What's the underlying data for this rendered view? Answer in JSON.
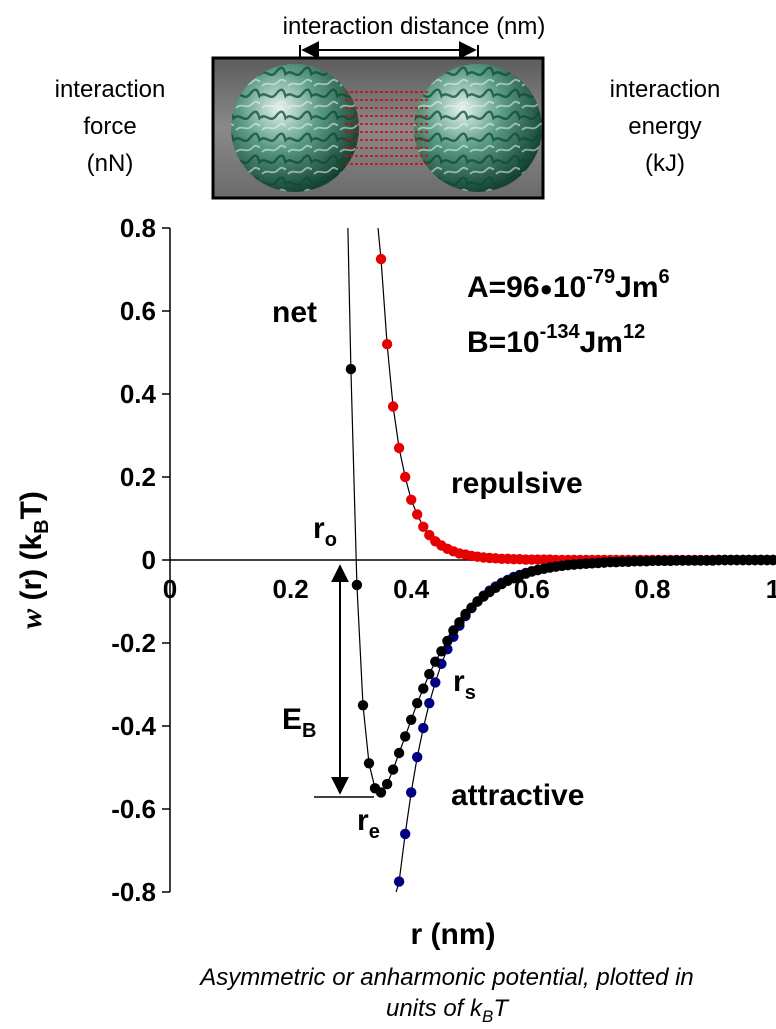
{
  "header": {
    "distance_label": "interaction distance (nm)",
    "force_lines": [
      "interaction",
      "force",
      "(nN)"
    ],
    "energy_lines": [
      "interaction",
      "energy",
      "(kJ)"
    ]
  },
  "chart_data": {
    "type": "scatter",
    "xlabel": "r (nm)",
    "ylabel": "w (r) (kBT)",
    "ylabel_parts": {
      "w": "w",
      "r": " (r) (k",
      "sub": "B",
      "end": "T)"
    },
    "xlim": [
      0,
      1
    ],
    "ylim": [
      -0.8,
      0.8
    ],
    "xticks": [
      "0",
      "0.2",
      "0.4",
      "0.6",
      "0.8",
      "1"
    ],
    "yticks": [
      "0.8",
      "0.6",
      "0.4",
      "0.2",
      "0",
      "-0.2",
      "-0.4",
      "-0.6",
      "-0.8"
    ],
    "xtick_values": [
      0,
      0.2,
      0.4,
      0.6,
      0.8,
      1
    ],
    "ytick_values": [
      0.8,
      0.6,
      0.4,
      0.2,
      0,
      -0.2,
      -0.4,
      -0.6,
      -0.8
    ],
    "params": {
      "A": {
        "lead": "A=96",
        "bullet": "●",
        "base": "10",
        "exp": "-79",
        "unit": "Jm",
        "unit_exp": "6"
      },
      "B": {
        "lead": "B=",
        "base": "10",
        "exp": "-134",
        "unit": "Jm",
        "unit_exp": "12"
      }
    },
    "annotations": {
      "net": "net",
      "repulsive": "repulsive",
      "attractive": "attractive",
      "r_o": {
        "base": "r",
        "sub": "o"
      },
      "r_e": {
        "base": "r",
        "sub": "e"
      },
      "r_s": {
        "base": "r",
        "sub": "s"
      },
      "E_B": {
        "base": "E",
        "sub": "B"
      }
    },
    "series": [
      {
        "color": "#e60000",
        "x": [
          0.35,
          0.36,
          0.37,
          0.38,
          0.39,
          0.4,
          0.41,
          0.42,
          0.43,
          0.44,
          0.45,
          0.46,
          0.47,
          0.48,
          0.49,
          0.5,
          0.51,
          0.52,
          0.53,
          0.54,
          0.55,
          0.56,
          0.57,
          0.58,
          0.59,
          0.6,
          0.61,
          0.62,
          0.63,
          0.64,
          0.65,
          0.66,
          0.67,
          0.68,
          0.69,
          0.7,
          0.71,
          0.72,
          0.73,
          0.74,
          0.75,
          0.76,
          0.77,
          0.78,
          0.79,
          0.8,
          0.81,
          0.82,
          0.83,
          0.84,
          0.85,
          0.86,
          0.87,
          0.88,
          0.89,
          0.9,
          0.91,
          0.92,
          0.93,
          0.94,
          0.95,
          0.96,
          0.97,
          0.98,
          0.99,
          1.0
        ],
        "y": [
          0.725,
          0.52,
          0.37,
          0.27,
          0.2,
          0.145,
          0.11,
          0.08,
          0.06,
          0.045,
          0.035,
          0.027,
          0.021,
          0.016,
          0.013,
          0.01,
          0.008,
          0.006,
          0.005,
          0.004,
          0.003,
          0.003,
          0.002,
          0.002,
          0.001,
          0.001,
          0.001,
          0.001,
          0.001,
          0,
          0,
          0,
          0,
          0,
          0,
          0,
          0,
          0,
          0,
          0,
          0,
          0,
          0,
          0,
          0,
          0,
          0,
          0,
          0,
          0,
          0,
          0,
          0,
          0,
          0,
          0,
          0,
          0,
          0,
          0,
          0,
          0,
          0,
          0,
          0,
          0
        ]
      },
      {
        "color": "#000080",
        "x": [
          0.38,
          0.39,
          0.4,
          0.41,
          0.42,
          0.43,
          0.44,
          0.45,
          0.46,
          0.47,
          0.48,
          0.49,
          0.5,
          0.51,
          0.52,
          0.53,
          0.54,
          0.55,
          0.56,
          0.57,
          0.58,
          0.59,
          0.6,
          0.61,
          0.62,
          0.63,
          0.64,
          0.65,
          0.66,
          0.67,
          0.68,
          0.69,
          0.7,
          0.71,
          0.72,
          0.73,
          0.74,
          0.75,
          0.76,
          0.77,
          0.78,
          0.79,
          0.8,
          0.81,
          0.82,
          0.83,
          0.84,
          0.85,
          0.86,
          0.87,
          0.88,
          0.89,
          0.9,
          0.91,
          0.92,
          0.93,
          0.94,
          0.95,
          0.96,
          0.97,
          0.98,
          0.99,
          1.0
        ],
        "y": [
          -0.775,
          -0.66,
          -0.56,
          -0.475,
          -0.405,
          -0.345,
          -0.295,
          -0.25,
          -0.215,
          -0.185,
          -0.158,
          -0.135,
          -0.116,
          -0.1,
          -0.086,
          -0.074,
          -0.064,
          -0.055,
          -0.048,
          -0.041,
          -0.036,
          -0.031,
          -0.027,
          -0.024,
          -0.021,
          -0.018,
          -0.016,
          -0.014,
          -0.012,
          -0.011,
          -0.01,
          -0.009,
          -0.008,
          -0.007,
          -0.006,
          -0.005,
          -0.005,
          -0.004,
          -0.004,
          -0.003,
          -0.003,
          -0.003,
          -0.002,
          -0.002,
          -0.002,
          -0.002,
          -0.001,
          -0.001,
          -0.001,
          -0.001,
          -0.001,
          -0.001,
          -0.001,
          0,
          0,
          0,
          0,
          0,
          0,
          0,
          0,
          0,
          0
        ]
      },
      {
        "color": "#000000",
        "x": [
          0.3,
          0.31,
          0.32,
          0.33,
          0.34,
          0.35,
          0.36,
          0.37,
          0.38,
          0.39,
          0.4,
          0.41,
          0.42,
          0.43,
          0.44,
          0.45,
          0.46,
          0.47,
          0.48,
          0.49,
          0.5,
          0.51,
          0.52,
          0.53,
          0.54,
          0.55,
          0.56,
          0.57,
          0.58,
          0.59,
          0.6,
          0.61,
          0.62,
          0.63,
          0.64,
          0.65,
          0.66,
          0.67,
          0.68,
          0.69,
          0.7,
          0.71,
          0.72,
          0.73,
          0.74,
          0.75,
          0.76,
          0.77,
          0.78,
          0.79,
          0.8,
          0.81,
          0.82,
          0.83,
          0.84,
          0.85,
          0.86,
          0.87,
          0.88,
          0.89,
          0.9,
          0.91,
          0.92,
          0.93,
          0.94,
          0.95,
          0.96,
          0.97,
          0.98,
          0.99,
          1.0
        ],
        "y": [
          0.46,
          -0.06,
          -0.35,
          -0.49,
          -0.55,
          -0.56,
          -0.54,
          -0.505,
          -0.465,
          -0.425,
          -0.385,
          -0.345,
          -0.31,
          -0.275,
          -0.245,
          -0.22,
          -0.195,
          -0.17,
          -0.15,
          -0.13,
          -0.115,
          -0.1,
          -0.088,
          -0.077,
          -0.067,
          -0.058,
          -0.05,
          -0.044,
          -0.038,
          -0.033,
          -0.028,
          -0.024,
          -0.021,
          -0.018,
          -0.016,
          -0.014,
          -0.012,
          -0.011,
          -0.01,
          -0.009,
          -0.008,
          -0.007,
          -0.006,
          -0.005,
          -0.005,
          -0.004,
          -0.004,
          -0.003,
          -0.003,
          -0.003,
          -0.002,
          -0.002,
          -0.002,
          -0.002,
          -0.001,
          -0.001,
          -0.001,
          -0.001,
          -0.001,
          -0.001,
          -0.001,
          0,
          0,
          0,
          0,
          0,
          0,
          0,
          0,
          0,
          0
        ]
      }
    ]
  },
  "caption": {
    "line1": "Asymmetric or anharmonic potential, plotted in",
    "line2_main": "units of k",
    "line2_sub": "B",
    "line2_end": "T"
  }
}
